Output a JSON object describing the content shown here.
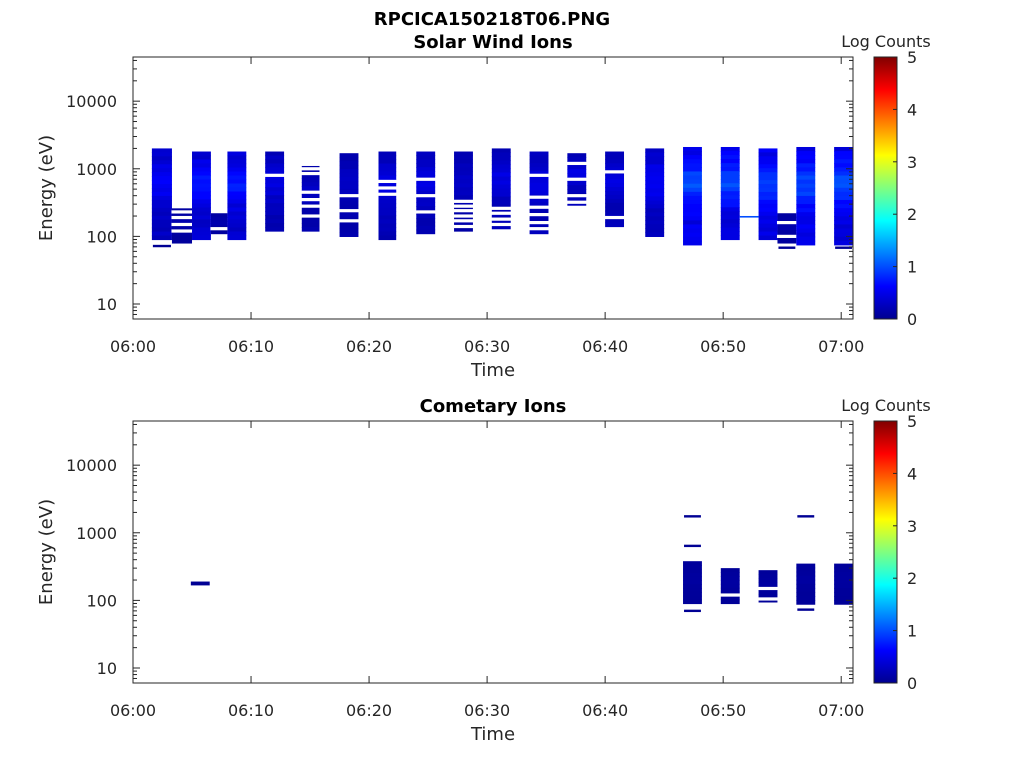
{
  "figure_title": "RPCICA150218T06.PNG",
  "colors": {
    "low": "#00008f",
    "high": "#800000",
    "axis": "#262626"
  },
  "chart_data": [
    {
      "type": "heatmap",
      "title": "Solar Wind Ions",
      "xlabel": "Time",
      "ylabel": "Energy (eV)",
      "y_scale": "log",
      "x_ticks": [
        "06:00",
        "06:10",
        "06:20",
        "06:30",
        "06:40",
        "06:50",
        "07:00"
      ],
      "y_ticks": [
        "10",
        "100",
        "1000",
        "10000"
      ],
      "xlim": [
        "06:00",
        "07:01"
      ],
      "ylim": [
        6,
        45000
      ],
      "colorbar": {
        "label": "Log Counts",
        "ticks": [
          "0",
          "1",
          "2",
          "3",
          "4",
          "5"
        ],
        "range": [
          0,
          5
        ]
      },
      "blocks": [
        {
          "start": "06:01.6",
          "end": "06:03.3",
          "emin": 90,
          "emax": 2000,
          "level": 0.4,
          "gaps": [
            75
          ],
          "lines": [
            72
          ]
        },
        {
          "start": "06:03.3",
          "end": "06:05.0",
          "emin": 80,
          "emax": 260,
          "level": 0.1,
          "gaps": [
            120,
            150,
            190,
            230
          ]
        },
        {
          "start": "06:05.0",
          "end": "06:06.6",
          "emin": 90,
          "emax": 1800,
          "level": 0.5,
          "gaps": []
        },
        {
          "start": "06:06.6",
          "end": "06:08.0",
          "emin": 110,
          "emax": 220,
          "level": 0.1,
          "gaps": [
            130
          ]
        },
        {
          "start": "06:08.0",
          "end": "06:09.6",
          "emin": 90,
          "emax": 1800,
          "level": 0.5,
          "gaps": []
        },
        {
          "start": "06:11.2",
          "end": "06:12.8",
          "emin": 120,
          "emax": 1800,
          "level": 0.3,
          "gaps": [
            800
          ]
        },
        {
          "start": "06:14.3",
          "end": "06:15.8",
          "emin": 120,
          "emax": 1100,
          "level": 0.2,
          "gaps": [
            200,
            280,
            350,
            450,
            850,
            1000
          ]
        },
        {
          "start": "06:17.5",
          "end": "06:19.1",
          "emin": 100,
          "emax": 1700,
          "level": 0.2,
          "gaps": [
            170,
            240,
            400
          ]
        },
        {
          "start": "06:20.8",
          "end": "06:22.3",
          "emin": 90,
          "emax": 1800,
          "level": 0.3,
          "gaps": [
            420,
            520,
            650
          ]
        },
        {
          "start": "06:24.0",
          "end": "06:25.6",
          "emin": 110,
          "emax": 1800,
          "level": 0.3,
          "gaps": [
            230,
            400,
            700
          ]
        },
        {
          "start": "06:27.2",
          "end": "06:28.8",
          "emin": 120,
          "emax": 1800,
          "level": 0.2,
          "gaps": [
            140,
            170,
            200,
            240,
            280,
            330
          ]
        },
        {
          "start": "06:30.4",
          "end": "06:32.0",
          "emin": 130,
          "emax": 2000,
          "level": 0.3,
          "gaps": [
            150,
            180,
            220,
            260
          ]
        },
        {
          "start": "06:33.6",
          "end": "06:35.2",
          "emin": 110,
          "emax": 1800,
          "level": 0.3,
          "gaps": [
            130,
            160,
            210,
            270,
            380,
            800
          ]
        },
        {
          "start": "06:36.8",
          "end": "06:38.4",
          "emin": 290,
          "emax": 1700,
          "level": 0.3,
          "gaps": [
            320,
            400,
            700,
            1200
          ]
        },
        {
          "start": "06:40.0",
          "end": "06:41.6",
          "emin": 140,
          "emax": 1800,
          "level": 0.3,
          "gaps": [
            190,
            900
          ]
        },
        {
          "start": "06:43.4",
          "end": "06:45.0",
          "emin": 100,
          "emax": 2000,
          "level": 0.4,
          "gaps": []
        },
        {
          "start": "06:46.6",
          "end": "06:48.2",
          "emin": 75,
          "emax": 2100,
          "level": 0.7,
          "gaps": []
        },
        {
          "start": "06:49.8",
          "end": "06:51.4",
          "emin": 90,
          "emax": 2100,
          "level": 0.7,
          "gaps": []
        },
        {
          "start": "06:53.0",
          "end": "06:54.6",
          "emin": 90,
          "emax": 2000,
          "level": 0.7,
          "gaps": []
        },
        {
          "start": "06:54.6",
          "end": "06:56.2",
          "emin": 80,
          "emax": 220,
          "level": 0.1,
          "gaps": [
            100,
            160
          ],
          "lines": [
            68
          ]
        },
        {
          "start": "06:56.2",
          "end": "06:57.8",
          "emin": 75,
          "emax": 2100,
          "level": 0.7,
          "gaps": []
        },
        {
          "start": "06:59.4",
          "end": "07:01.0",
          "emin": 75,
          "emax": 2100,
          "level": 0.7,
          "gaps": [],
          "lines": [
            68
          ]
        }
      ],
      "lines": [
        {
          "start": "06:51.4",
          "end": "06:53.0",
          "energy": 195,
          "level": 0.2
        }
      ]
    },
    {
      "type": "heatmap",
      "title": "Cometary Ions",
      "xlabel": "Time",
      "ylabel": "Energy (eV)",
      "y_scale": "log",
      "x_ticks": [
        "06:00",
        "06:10",
        "06:20",
        "06:30",
        "06:40",
        "06:50",
        "07:00"
      ],
      "y_ticks": [
        "10",
        "100",
        "1000",
        "10000"
      ],
      "xlim": [
        "06:00",
        "07:01"
      ],
      "ylim": [
        6,
        45000
      ],
      "colorbar": {
        "label": "Log Counts",
        "ticks": [
          "0",
          "1",
          "2",
          "3",
          "4",
          "5"
        ],
        "range": [
          0,
          5
        ]
      },
      "blocks": [
        {
          "start": "06:04.9",
          "end": "06:06.5",
          "emin": 170,
          "emax": 190,
          "level": 0.0,
          "gaps": []
        },
        {
          "start": "06:46.6",
          "end": "06:48.2",
          "emin": 90,
          "emax": 380,
          "level": 0.05,
          "gaps": [],
          "lines": [
            70,
            640,
            1750
          ]
        },
        {
          "start": "06:49.8",
          "end": "06:51.4",
          "emin": 90,
          "emax": 300,
          "level": 0.05,
          "gaps": [
            120
          ]
        },
        {
          "start": "06:53.0",
          "end": "06:54.6",
          "emin": 95,
          "emax": 280,
          "level": 0.05,
          "gaps": [
            105,
            150
          ]
        },
        {
          "start": "06:56.2",
          "end": "06:57.8",
          "emin": 88,
          "emax": 350,
          "level": 0.05,
          "gaps": [],
          "lines": [
            73,
            1750
          ]
        },
        {
          "start": "06:59.4",
          "end": "07:01.0",
          "emin": 88,
          "emax": 350,
          "level": 0.05,
          "gaps": []
        }
      ],
      "lines": []
    }
  ]
}
